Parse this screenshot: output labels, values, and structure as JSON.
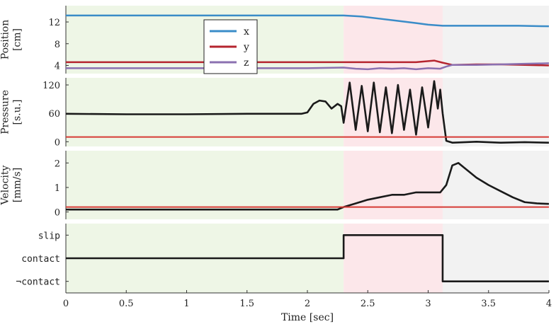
{
  "chart_data": {
    "type": "line",
    "x_axis": {
      "label": "Time [sec]",
      "range": [
        0,
        4
      ],
      "ticks": [
        0,
        0.5,
        1,
        1.5,
        2,
        2.5,
        3,
        3.5,
        4
      ],
      "tick_labels": [
        "0",
        "0.5",
        "1",
        "1.5",
        "2",
        "2.5",
        "3",
        "3.5",
        "4"
      ]
    },
    "phases": [
      {
        "name": "contact",
        "from": 0,
        "to": 2.3,
        "color": "#eef6e6"
      },
      {
        "name": "slip",
        "from": 2.3,
        "to": 3.12,
        "color": "#fce7ea"
      },
      {
        "name": "no-contact",
        "from": 3.12,
        "to": 4,
        "color": "#f2f2f2"
      }
    ],
    "panels": [
      {
        "id": "position",
        "ylabel": [
          "Position",
          "[cm]"
        ],
        "ylim": [
          2.5,
          15
        ],
        "yticks": [
          4,
          8,
          12
        ],
        "ytick_labels": [
          "4",
          "8",
          "12"
        ],
        "legend": {
          "placement": "top-center",
          "entries": [
            "x",
            "y",
            "z"
          ]
        },
        "series": [
          {
            "name": "x",
            "color": "#3a8cc8",
            "x": [
              0,
              0.5,
              1,
              1.5,
              2,
              2.3,
              2.45,
              2.6,
              2.75,
              2.9,
              3.0,
              3.12,
              3.3,
              3.5,
              3.75,
              4.0
            ],
            "y": [
              13.2,
              13.2,
              13.2,
              13.2,
              13.2,
              13.2,
              13.0,
              12.6,
              12.2,
              11.8,
              11.5,
              11.3,
              11.3,
              11.3,
              11.3,
              11.2
            ]
          },
          {
            "name": "y",
            "color": "#b5252f",
            "x": [
              0,
              0.5,
              1,
              1.5,
              2,
              2.3,
              2.6,
              2.9,
              3.05,
              3.12,
              3.2,
              3.4,
              3.6,
              3.8,
              4.0
            ],
            "y": [
              4.6,
              4.6,
              4.6,
              4.6,
              4.6,
              4.6,
              4.6,
              4.6,
              4.9,
              4.5,
              4.1,
              4.2,
              4.2,
              4.1,
              4.0
            ]
          },
          {
            "name": "z",
            "color": "#8b70b0",
            "x": [
              0,
              0.5,
              1,
              1.5,
              2,
              2.3,
              2.4,
              2.5,
              2.6,
              2.7,
              2.8,
              2.9,
              3.0,
              3.1,
              3.15,
              3.2,
              3.4,
              3.6,
              3.8,
              4.0
            ],
            "y": [
              3.5,
              3.5,
              3.5,
              3.5,
              3.5,
              3.6,
              3.4,
              3.3,
              3.5,
              3.4,
              3.5,
              3.3,
              3.5,
              3.4,
              3.8,
              4.1,
              4.1,
              4.2,
              4.3,
              4.4
            ]
          }
        ]
      },
      {
        "id": "pressure",
        "ylabel": [
          "Pressure",
          "[s.u.]"
        ],
        "ylim": [
          -10,
          135
        ],
        "yticks": [
          0,
          60,
          120
        ],
        "ytick_labels": [
          "0",
          "60",
          "120"
        ],
        "series": [
          {
            "name": "pressure",
            "color": "#1a1a1a",
            "x": [
              0,
              0.5,
              1,
              1.5,
              1.95,
              2.0,
              2.05,
              2.1,
              2.15,
              2.2,
              2.25,
              2.28,
              2.3,
              2.35,
              2.4,
              2.45,
              2.5,
              2.55,
              2.6,
              2.65,
              2.7,
              2.75,
              2.8,
              2.85,
              2.9,
              2.95,
              3.0,
              3.05,
              3.08,
              3.1,
              3.12,
              3.15,
              3.2,
              3.4,
              3.6,
              3.8,
              4.0
            ],
            "y": [
              59,
              58,
              58,
              59,
              59,
              62,
              80,
              87,
              85,
              70,
              80,
              75,
              40,
              125,
              25,
              118,
              22,
              125,
              20,
              115,
              18,
              120,
              25,
              110,
              15,
              115,
              30,
              128,
              70,
              110,
              60,
              2,
              -2,
              0,
              -2,
              -1,
              -2
            ]
          },
          {
            "name": "threshold",
            "color": "#d63a35",
            "x": [
              0,
              4
            ],
            "y": [
              10,
              10
            ]
          }
        ]
      },
      {
        "id": "velocity",
        "ylabel": [
          "Velocity",
          "[mm/s]"
        ],
        "ylim": [
          -0.3,
          2.5
        ],
        "yticks": [
          0,
          1,
          2
        ],
        "ytick_labels": [
          "0",
          "1",
          "2"
        ],
        "series": [
          {
            "name": "velocity",
            "color": "#1a1a1a",
            "x": [
              0,
              0.5,
              1,
              1.5,
              2,
              2.25,
              2.3,
              2.4,
              2.5,
              2.6,
              2.7,
              2.8,
              2.9,
              3.0,
              3.1,
              3.15,
              3.2,
              3.25,
              3.3,
              3.4,
              3.5,
              3.6,
              3.7,
              3.8,
              3.9,
              4.0
            ],
            "y": [
              0.1,
              0.1,
              0.1,
              0.1,
              0.1,
              0.1,
              0.2,
              0.35,
              0.5,
              0.6,
              0.7,
              0.7,
              0.8,
              0.8,
              0.8,
              1.1,
              1.9,
              2.0,
              1.8,
              1.4,
              1.1,
              0.85,
              0.6,
              0.4,
              0.35,
              0.33
            ]
          },
          {
            "name": "threshold",
            "color": "#d63a35",
            "x": [
              0,
              4
            ],
            "y": [
              0.2,
              0.2
            ]
          }
        ]
      },
      {
        "id": "state",
        "ylabel": [],
        "ylim": [
          -0.5,
          2.5
        ],
        "yticks": [
          0,
          1,
          2
        ],
        "ytick_labels": [
          "¬contact",
          "contact",
          "slip"
        ],
        "series": [
          {
            "name": "state",
            "color": "#1a1a1a",
            "step": true,
            "x": [
              0,
              2.3,
              2.3,
              3.12,
              3.12,
              4.0
            ],
            "y": [
              1,
              1,
              2,
              2,
              0,
              0
            ]
          }
        ]
      }
    ]
  }
}
